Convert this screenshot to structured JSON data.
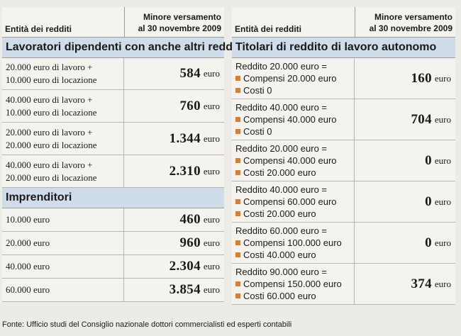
{
  "left": {
    "header_col1": "Entità dei redditi",
    "header_col2_line1": "Minore versamento",
    "header_col2_line2": "al 30 novembre 2009",
    "section1_title": "Lavoratori dipendenti con anche altri redditi",
    "section1_rows": [
      {
        "line1": "20.000 euro di lavoro +",
        "line2": "10.000 euro di locazione",
        "value": "584",
        "unit": "euro"
      },
      {
        "line1": "40.000 euro di lavoro +",
        "line2": "10.000 euro di locazione",
        "value": "760",
        "unit": "euro"
      },
      {
        "line1": "20.000 euro di lavoro +",
        "line2": "20.000 euro di locazione",
        "value": "1.344",
        "unit": "euro"
      },
      {
        "line1": "40.000 euro di lavoro +",
        "line2": "20.000 euro di locazione",
        "value": "2.310",
        "unit": "euro"
      }
    ],
    "section2_title": "Imprenditori",
    "section2_rows": [
      {
        "label": "10.000 euro",
        "value": "460",
        "unit": "euro"
      },
      {
        "label": "20.000 euro",
        "value": "960",
        "unit": "euro"
      },
      {
        "label": "40.000 euro",
        "value": "2.304",
        "unit": "euro"
      },
      {
        "label": "60.000 euro",
        "value": "3.854",
        "unit": "euro"
      }
    ]
  },
  "right": {
    "header_col1": "Entità dei redditi",
    "header_col2_line1": "Minore versamento",
    "header_col2_line2": "al 30 novembre 2009",
    "section_title": "Titolari di reddito di lavoro autonomo",
    "rows": [
      {
        "line1": "Reddito 20.000 euro =",
        "line2": "Compensi 20.000 euro",
        "line3": "Costi 0",
        "value": "160",
        "unit": "euro"
      },
      {
        "line1": "Reddito 40.000 euro =",
        "line2": "Compensi 40.000 euro",
        "line3": "Costi 0",
        "value": "704",
        "unit": "euro"
      },
      {
        "line1": "Reddito 20.000 euro =",
        "line2": "Compensi 40.000 euro",
        "line3": "Costi 20.000 euro",
        "value": "0",
        "unit": "euro"
      },
      {
        "line1": "Reddito 40.000 euro =",
        "line2": "Compensi 60.000 euro",
        "line3": "Costi 20.000 euro",
        "value": "0",
        "unit": "euro"
      },
      {
        "line1": "Reddito 60.000 euro =",
        "line2": "Compensi 100.000 euro",
        "line3": "Costi 40.000 euro",
        "value": "0",
        "unit": "euro"
      },
      {
        "line1": "Reddito 90.000 euro =",
        "line2": "Compensi 150.000 euro",
        "line3": "Costi 60.000 euro",
        "value": "374",
        "unit": "euro"
      }
    ]
  },
  "footer": "Fonte: Ufficio studi del Consiglio nazionale dottori commercialisti ed esperti contabili",
  "colors": {
    "section_bg": "#cfdcea",
    "bullet": "#e07d2a",
    "panel_bg": "#f4f3ee",
    "page_bg": "#ecebe6"
  }
}
